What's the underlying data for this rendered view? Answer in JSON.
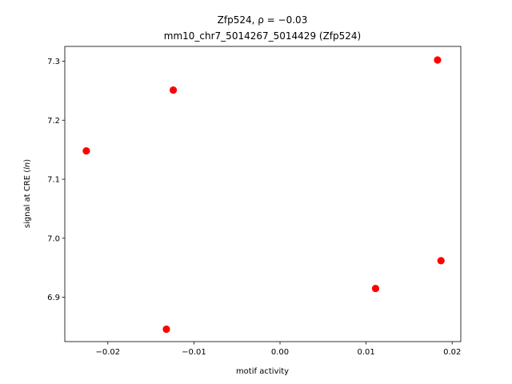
{
  "chart_data": {
    "type": "scatter",
    "title_line1": "Zfp524, ρ = −0.03",
    "title_line2": "mm10_chr7_5014267_5014429 (Zfp524)",
    "xlabel": "motif activity",
    "ylabel": "signal at CRE (ln)",
    "ylabel_prefix": "signal at CRE (",
    "ylabel_italic": "ln",
    "ylabel_suffix": ")",
    "xlim": [
      -0.025,
      0.021
    ],
    "ylim": [
      6.825,
      7.325
    ],
    "x_ticks": [
      {
        "value": -0.02,
        "label": "−0.02"
      },
      {
        "value": -0.01,
        "label": "−0.01"
      },
      {
        "value": 0.0,
        "label": "0.00"
      },
      {
        "value": 0.01,
        "label": "0.01"
      },
      {
        "value": 0.02,
        "label": "0.02"
      }
    ],
    "y_ticks": [
      {
        "value": 6.9,
        "label": "6.9"
      },
      {
        "value": 7.0,
        "label": "7.0"
      },
      {
        "value": 7.1,
        "label": "7.1"
      },
      {
        "value": 7.2,
        "label": "7.2"
      },
      {
        "value": 7.3,
        "label": "7.3"
      }
    ],
    "points": [
      {
        "x": -0.0225,
        "y": 7.148
      },
      {
        "x": -0.0124,
        "y": 7.251
      },
      {
        "x": -0.0132,
        "y": 6.846
      },
      {
        "x": 0.0111,
        "y": 6.915
      },
      {
        "x": 0.0183,
        "y": 7.302
      },
      {
        "x": 0.0187,
        "y": 6.962
      }
    ],
    "point_color": "#ff0000",
    "grid": false,
    "legend": "none"
  }
}
